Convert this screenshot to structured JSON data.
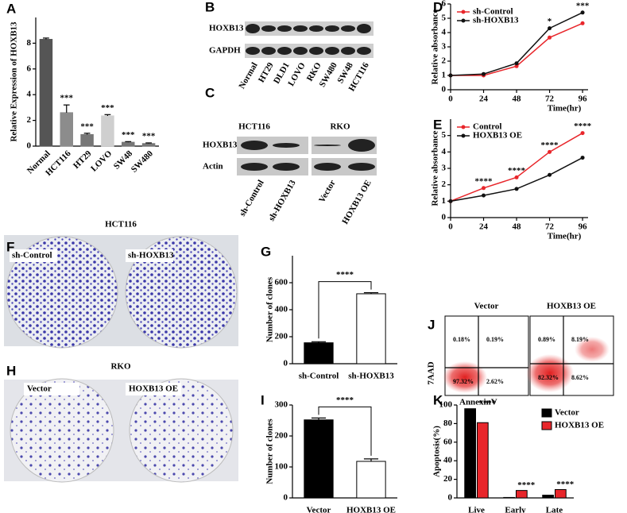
{
  "chart_data": [
    {
      "label": "A",
      "type": "bar",
      "y_label": "Relative Expression of HOXB13",
      "categories": [
        "Normal",
        "HCT116",
        "HT29",
        "LOVO",
        "SW48",
        "SW480"
      ],
      "values": [
        8.3,
        2.6,
        0.9,
        2.35,
        0.3,
        0.2
      ],
      "errors": [
        0.1,
        0.6,
        0.1,
        0.1,
        0.05,
        0.05
      ],
      "colors": [
        "#555555",
        "#8c8c8c",
        "#777777",
        "#cfcfcf",
        "#777777",
        "#777777"
      ],
      "sig_labels": [
        null,
        "***",
        "***",
        "***",
        "***",
        "***"
      ],
      "ylim": [
        0,
        10
      ],
      "yticks": [
        0,
        2,
        4,
        6,
        8
      ]
    },
    {
      "label": "D",
      "type": "line",
      "y_label": "Relative absorbance",
      "x_label": "Time(hr)",
      "x": [
        0,
        24,
        48,
        72,
        96
      ],
      "xlim": [
        0,
        100
      ],
      "xticks": [
        0,
        24,
        48,
        72,
        96
      ],
      "ylim": [
        0,
        6
      ],
      "yticks": [
        0,
        1,
        2,
        3,
        4,
        5,
        6
      ],
      "legend": "upper left",
      "series": [
        {
          "name": "sh-Control",
          "color": "#e8262b",
          "values": [
            1.0,
            1.0,
            1.65,
            3.65,
            4.65
          ]
        },
        {
          "name": "sh-HOXB13",
          "color": "#111111",
          "values": [
            1.0,
            1.1,
            1.85,
            4.3,
            5.4
          ]
        }
      ],
      "sig_labels": [
        null,
        null,
        null,
        "*",
        "***"
      ]
    },
    {
      "label": "E",
      "type": "line",
      "y_label": "Relative absorbance",
      "x_label": "Time(hr)",
      "x": [
        0,
        24,
        48,
        72,
        96
      ],
      "xlim": [
        0,
        100
      ],
      "xticks": [
        0,
        24,
        48,
        72,
        96
      ],
      "ylim": [
        0,
        6
      ],
      "yticks": [
        0,
        1,
        2,
        3,
        4,
        5
      ],
      "legend": "upper left",
      "series": [
        {
          "name": "Control",
          "color": "#e8262b",
          "values": [
            1.0,
            1.8,
            2.45,
            4.0,
            5.15
          ]
        },
        {
          "name": "HOXB13 OE",
          "color": "#111111",
          "values": [
            1.0,
            1.35,
            1.75,
            2.6,
            3.65
          ]
        }
      ],
      "sig_labels": [
        null,
        "****",
        "****",
        "****",
        "****"
      ]
    },
    {
      "label": "G",
      "type": "bar",
      "y_label": "Number of clones",
      "categories": [
        "sh-Control",
        "sh-HOXB13"
      ],
      "values": [
        155,
        518
      ],
      "errors": [
        8,
        8
      ],
      "colors": [
        "#000000",
        "#ffffff"
      ],
      "annotation": "****",
      "ylim": [
        0,
        800
      ],
      "yticks": [
        0,
        200,
        400,
        600
      ]
    },
    {
      "label": "I",
      "type": "bar",
      "y_label": "Number of clones",
      "categories": [
        "Vector",
        "HOXB13 OE"
      ],
      "values": [
        252,
        118
      ],
      "errors": [
        6,
        8
      ],
      "colors": [
        "#000000",
        "#ffffff"
      ],
      "annotation": "****",
      "ylim": [
        0,
        300
      ],
      "yticks": [
        0,
        100,
        200,
        300
      ]
    },
    {
      "label": "K",
      "type": "bar",
      "y_label": "Apoptosis(%)",
      "categories": [
        "Live",
        "Early",
        "Late"
      ],
      "legend": "upper right",
      "series": [
        {
          "name": "Vector",
          "color": "#000000",
          "values": [
            96,
            0.5,
            3
          ]
        },
        {
          "name": "HOXB13 OE",
          "color": "#e8262b",
          "values": [
            81,
            8,
            9
          ]
        }
      ],
      "sig_labels": [
        "****",
        "****",
        "****"
      ],
      "ylim": [
        0,
        100
      ],
      "yticks": [
        0,
        20,
        40,
        60,
        80,
        100
      ]
    }
  ],
  "blot_B": {
    "label": "B",
    "rows": [
      "HOXB13",
      "GAPDH"
    ],
    "lanes": [
      "Normal",
      "HT29",
      "DLD1",
      "LOVO",
      "RKO",
      "SW480",
      "SW48",
      "HCT116"
    ]
  },
  "blot_C": {
    "label": "C",
    "groups": [
      "HCT116",
      "RKO"
    ],
    "rows": [
      "HOXB13",
      "Actin"
    ],
    "lanes": [
      "sh-Control",
      "sh-HOXB13",
      "Vector",
      "HOXB13 OE"
    ]
  },
  "colony_F": {
    "label": "F",
    "title": "HCT116",
    "wells": [
      "sh-Control",
      "sh-HOXB13"
    ]
  },
  "colony_H": {
    "label": "H",
    "title": "RKO",
    "wells": [
      "Vector",
      "HOXB13 OE"
    ]
  },
  "flow_J": {
    "label": "J",
    "y_label": "7AAD",
    "x_label": "AnnexinV",
    "plots": [
      {
        "title": "Vector",
        "quadrants": [
          "0.18%",
          "0.19%",
          "97.32%",
          "2.62%"
        ]
      },
      {
        "title": "HOXB13 OE",
        "quadrants": [
          "0.89%",
          "8.19%",
          "82.32%",
          "8.62%"
        ]
      }
    ]
  }
}
